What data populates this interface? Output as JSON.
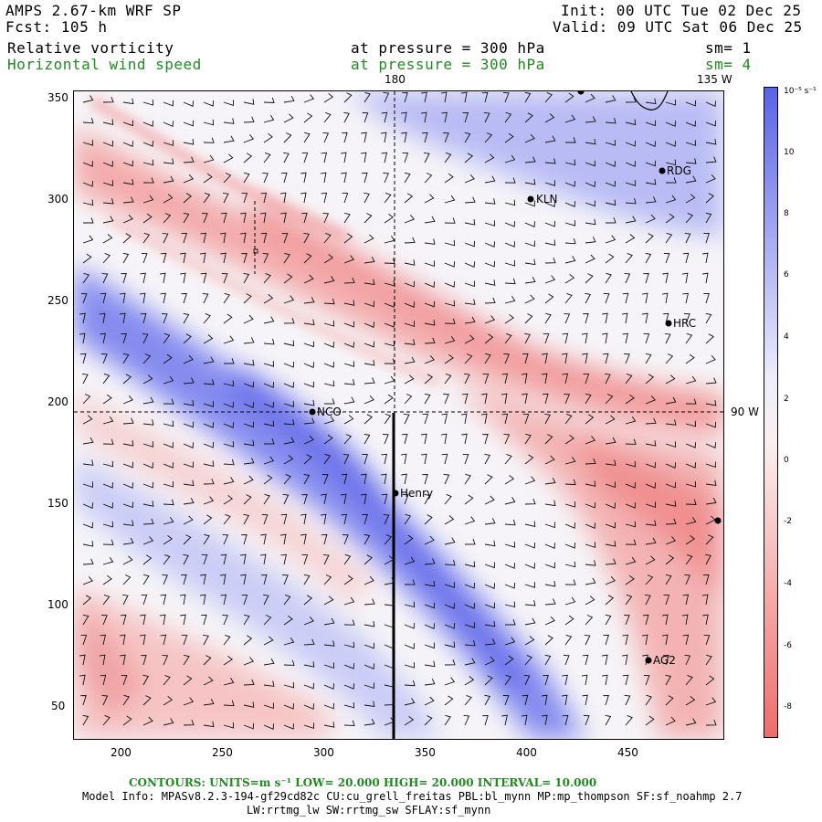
{
  "header": {
    "model": "AMPS 2.67-km WRF SP",
    "forecast": "Fcst:  105 h",
    "init": "Init: 00 UTC Tue 02 Dec 25",
    "valid": "Valid: 09 UTC Sat 06 Dec 25",
    "field1": "Relative vorticity",
    "field1_level": "at pressure =  300 hPa",
    "field1_sm": "sm= 1",
    "field2": "Horizontal wind speed",
    "field2_level": "at pressure =  300 hPa",
    "field2_sm": "sm= 4"
  },
  "map": {
    "lon_labels": {
      "top_mid": "180",
      "top_right": "135 W",
      "right": "90 W"
    },
    "x_ticks": [
      "200",
      "250",
      "300",
      "350",
      "400",
      "450"
    ],
    "y_ticks": [
      "350",
      "300",
      "250",
      "200",
      "150",
      "100",
      "50"
    ],
    "stations": [
      {
        "name": "RDG"
      },
      {
        "name": "KLN"
      },
      {
        "name": "HRC"
      },
      {
        "name": "NCO"
      },
      {
        "name": "Henry"
      },
      {
        "name": "AG2"
      }
    ]
  },
  "colorbar": {
    "unit": "10⁻⁵ s⁻¹",
    "labels": [
      "10",
      "8",
      "6",
      "4",
      "2",
      "0",
      "-2",
      "-4",
      "-6",
      "-8"
    ],
    "positive_color": "#5a62e8",
    "negative_color": "#f06b6b"
  },
  "footer": {
    "contours": "CONTOURS:  UNITS=m s⁻¹  LOW=  20.000      HIGH=  20.000      INTERVAL=   10.000",
    "model_info": "Model Info: MPASv8.2.3-194-gf29cd82c CU:cu_grell_freitas PBL:bl_mynn MP:mp_thompson SF:sf_noahmp 2.7",
    "model_info2": "LW:rrtmg_lw SW:rrtmg_sw SFLAY:sf_mynn"
  }
}
